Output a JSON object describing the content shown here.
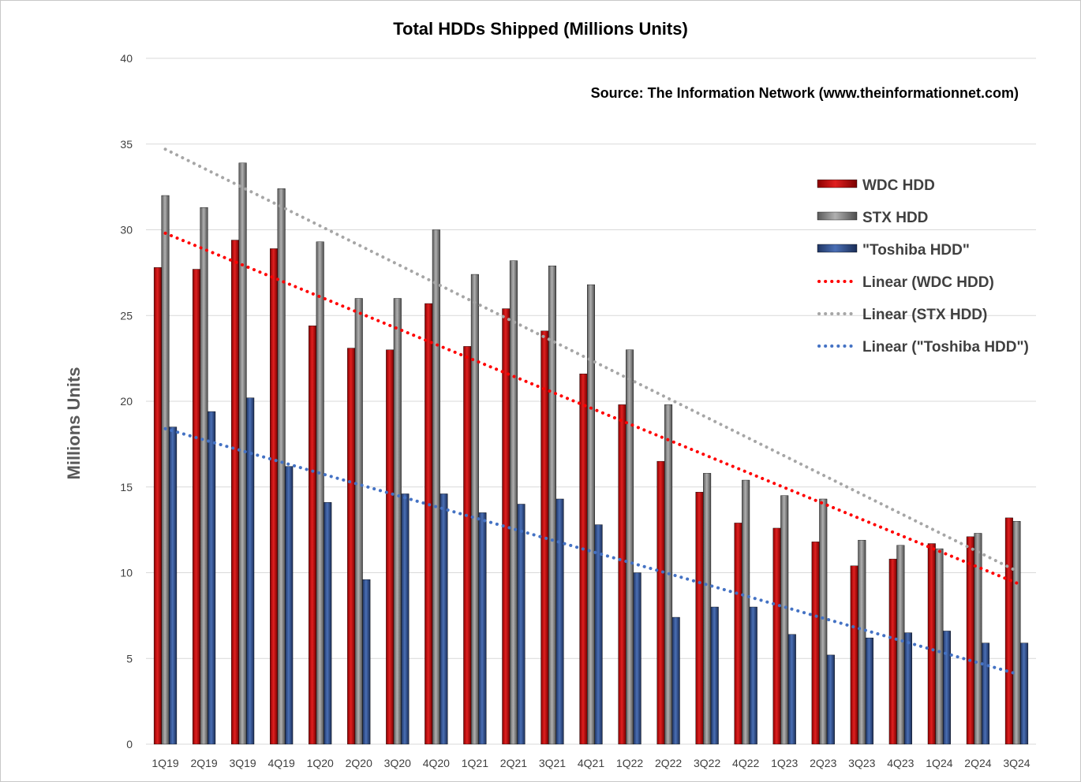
{
  "chart_data": {
    "type": "bar",
    "title": "Total HDDs Shipped (Millions Units)",
    "source": "Source: The Information Network (www.theinformationnet.com)",
    "ylabel": "Millions  Units",
    "xlabel": "",
    "ylim": [
      0,
      40
    ],
    "yticks": [
      "0",
      "5",
      "10",
      "15",
      "20",
      "25",
      "30",
      "35",
      "40"
    ],
    "grid": true,
    "legend_position": "right",
    "categories": [
      "1Q19",
      "2Q19",
      "3Q19",
      "4Q19",
      "1Q20",
      "2Q20",
      "3Q20",
      "4Q20",
      "1Q21",
      "2Q21",
      "3Q21",
      "4Q21",
      "1Q22",
      "2Q22",
      "3Q22",
      "4Q22",
      "1Q23",
      "2Q23",
      "3Q23",
      "4Q23",
      "1Q24",
      "2Q24",
      "3Q24"
    ],
    "series": [
      {
        "name": "WDC HDD",
        "color": "#c00000",
        "values": [
          27.8,
          27.7,
          29.4,
          28.9,
          24.4,
          23.1,
          23.0,
          25.7,
          23.2,
          25.4,
          24.1,
          21.6,
          19.8,
          16.5,
          14.7,
          12.9,
          12.6,
          11.8,
          10.4,
          10.8,
          11.7,
          12.1,
          13.2
        ]
      },
      {
        "name": "STX HDD",
        "color": "#7f7f7f",
        "values": [
          32.0,
          31.3,
          33.9,
          32.4,
          29.3,
          26.0,
          26.0,
          30.0,
          27.4,
          28.2,
          27.9,
          26.8,
          23.0,
          19.8,
          15.8,
          15.4,
          14.5,
          14.3,
          11.9,
          11.6,
          11.4,
          12.3,
          13.0
        ]
      },
      {
        "name": "\"Toshiba HDD\"",
        "color": "#2f4f8f",
        "values": [
          18.5,
          19.4,
          20.2,
          16.2,
          14.1,
          9.6,
          14.6,
          14.6,
          13.5,
          14.0,
          14.3,
          12.8,
          10.0,
          7.4,
          8.0,
          8.0,
          6.4,
          5.2,
          6.2,
          6.5,
          6.6,
          5.9,
          5.9
        ]
      }
    ],
    "trendlines": [
      {
        "name": "Linear (WDC HDD)",
        "color": "#ff0000",
        "start": 29.8,
        "end": 9.4
      },
      {
        "name": "Linear (STX HDD)",
        "color": "#a6a6a6",
        "start": 34.7,
        "end": 10.1
      },
      {
        "name": "Linear (\"Toshiba HDD\")",
        "color": "#4472c4",
        "start": 18.4,
        "end": 4.1
      }
    ]
  }
}
